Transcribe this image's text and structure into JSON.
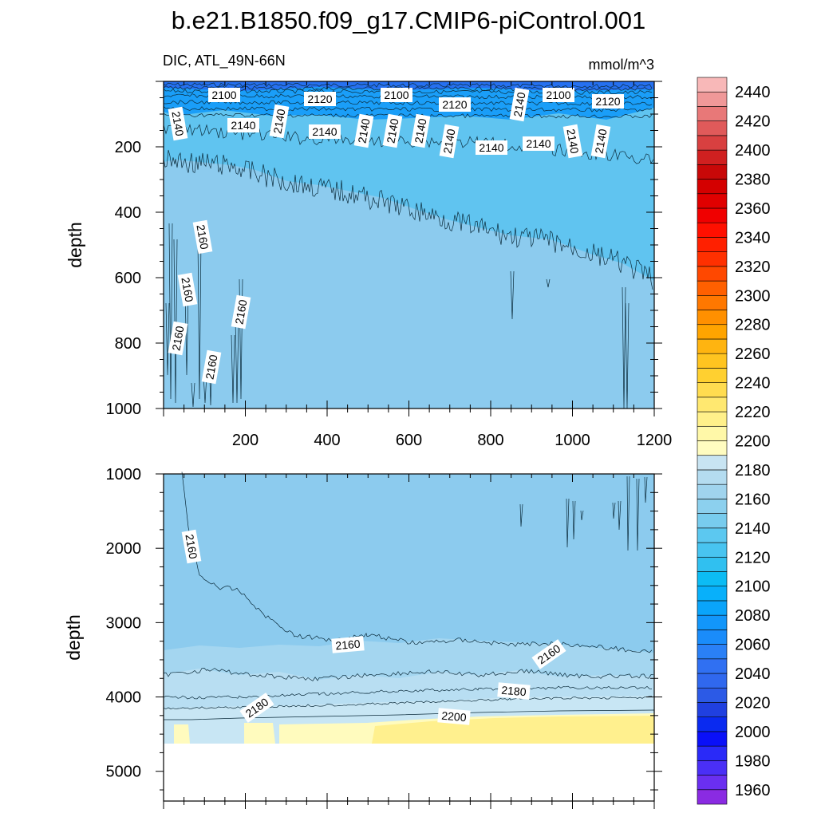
{
  "chart_data": {
    "type": "heatmap",
    "title": "b.e21.B1850.f09_g17.CMIP6-piControl.001",
    "variable_label": "DIC, ATL_49N-66N",
    "units": "mmol/m^3",
    "colorbar": {
      "levels": [
        1960,
        1970,
        1980,
        1990,
        2000,
        2010,
        2020,
        2030,
        2040,
        2050,
        2060,
        2070,
        2080,
        2090,
        2100,
        2110,
        2120,
        2130,
        2140,
        2150,
        2160,
        2170,
        2180,
        2190,
        2200,
        2210,
        2220,
        2230,
        2240,
        2250,
        2260,
        2270,
        2280,
        2290,
        2300,
        2310,
        2320,
        2330,
        2340,
        2350,
        2360,
        2370,
        2380,
        2390,
        2400,
        2410,
        2420,
        2430,
        2440,
        2450
      ],
      "tick_labels": [
        "1960",
        "1980",
        "2000",
        "2020",
        "2040",
        "2060",
        "2080",
        "2100",
        "2120",
        "2140",
        "2160",
        "2180",
        "2200",
        "2220",
        "2240",
        "2260",
        "2280",
        "2300",
        "2320",
        "2340",
        "2360",
        "2380",
        "2400",
        "2420",
        "2440"
      ],
      "colors": [
        "#8a2be2",
        "#6a2ff0",
        "#4a2ff6",
        "#2a2af8",
        "#0a10f8",
        "#0a2af0",
        "#2040e0",
        "#2c5ae6",
        "#3068ee",
        "#3070f2",
        "#2a80f6",
        "#1a8cfa",
        "#1296fa",
        "#0aa4fa",
        "#08b0fa",
        "#0cbcf4",
        "#30c0f0",
        "#48c4f0",
        "#5cc8f0",
        "#78ccee",
        "#8cd0ee",
        "#a0d4ee",
        "#b4dcf0",
        "#c8e4f2",
        "#fffcc0",
        "#fff8a8",
        "#fff08a",
        "#ffe870",
        "#ffdc50",
        "#ffd030",
        "#ffc420",
        "#ffb410",
        "#ffa400",
        "#ff9000",
        "#ff7800",
        "#ff6000",
        "#ff4800",
        "#ff3000",
        "#ff2000",
        "#ff1000",
        "#f00000",
        "#e00000",
        "#d40000",
        "#c80808",
        "#d02020",
        "#d84040",
        "#e05a5a",
        "#e87878",
        "#f09898",
        "#f8b8b8"
      ]
    },
    "panels": [
      {
        "name": "upper",
        "x_range": [
          0,
          1200
        ],
        "y_range": [
          0,
          1000
        ],
        "y_inverted": true,
        "xlabel": "",
        "ylabel": "depth",
        "x_tick_labels": [
          "200",
          "400",
          "600",
          "800",
          "1000",
          "1200"
        ],
        "y_tick_labels": [
          "200",
          "400",
          "600",
          "800",
          "1000"
        ],
        "contour_labels": [
          "2100",
          "2120",
          "2100",
          "2120",
          "2100",
          "2120",
          "2140",
          "2140",
          "2140",
          "2140",
          "2140",
          "2140",
          "2140",
          "2140",
          "2140",
          "2140",
          "2140",
          "2140",
          "2140",
          "2160",
          "2160",
          "2160",
          "2160",
          "2160"
        ]
      },
      {
        "name": "lower",
        "x_range": [
          0,
          1200
        ],
        "y_range": [
          1000,
          5400
        ],
        "y_inverted": true,
        "xlabel": "",
        "ylabel": "depth",
        "x_tick_labels": [],
        "y_tick_labels": [
          "1000",
          "2000",
          "3000",
          "4000",
          "5000"
        ],
        "contour_labels": [
          "2160",
          "2160",
          "2160",
          "2180",
          "2180",
          "2200"
        ]
      }
    ]
  }
}
